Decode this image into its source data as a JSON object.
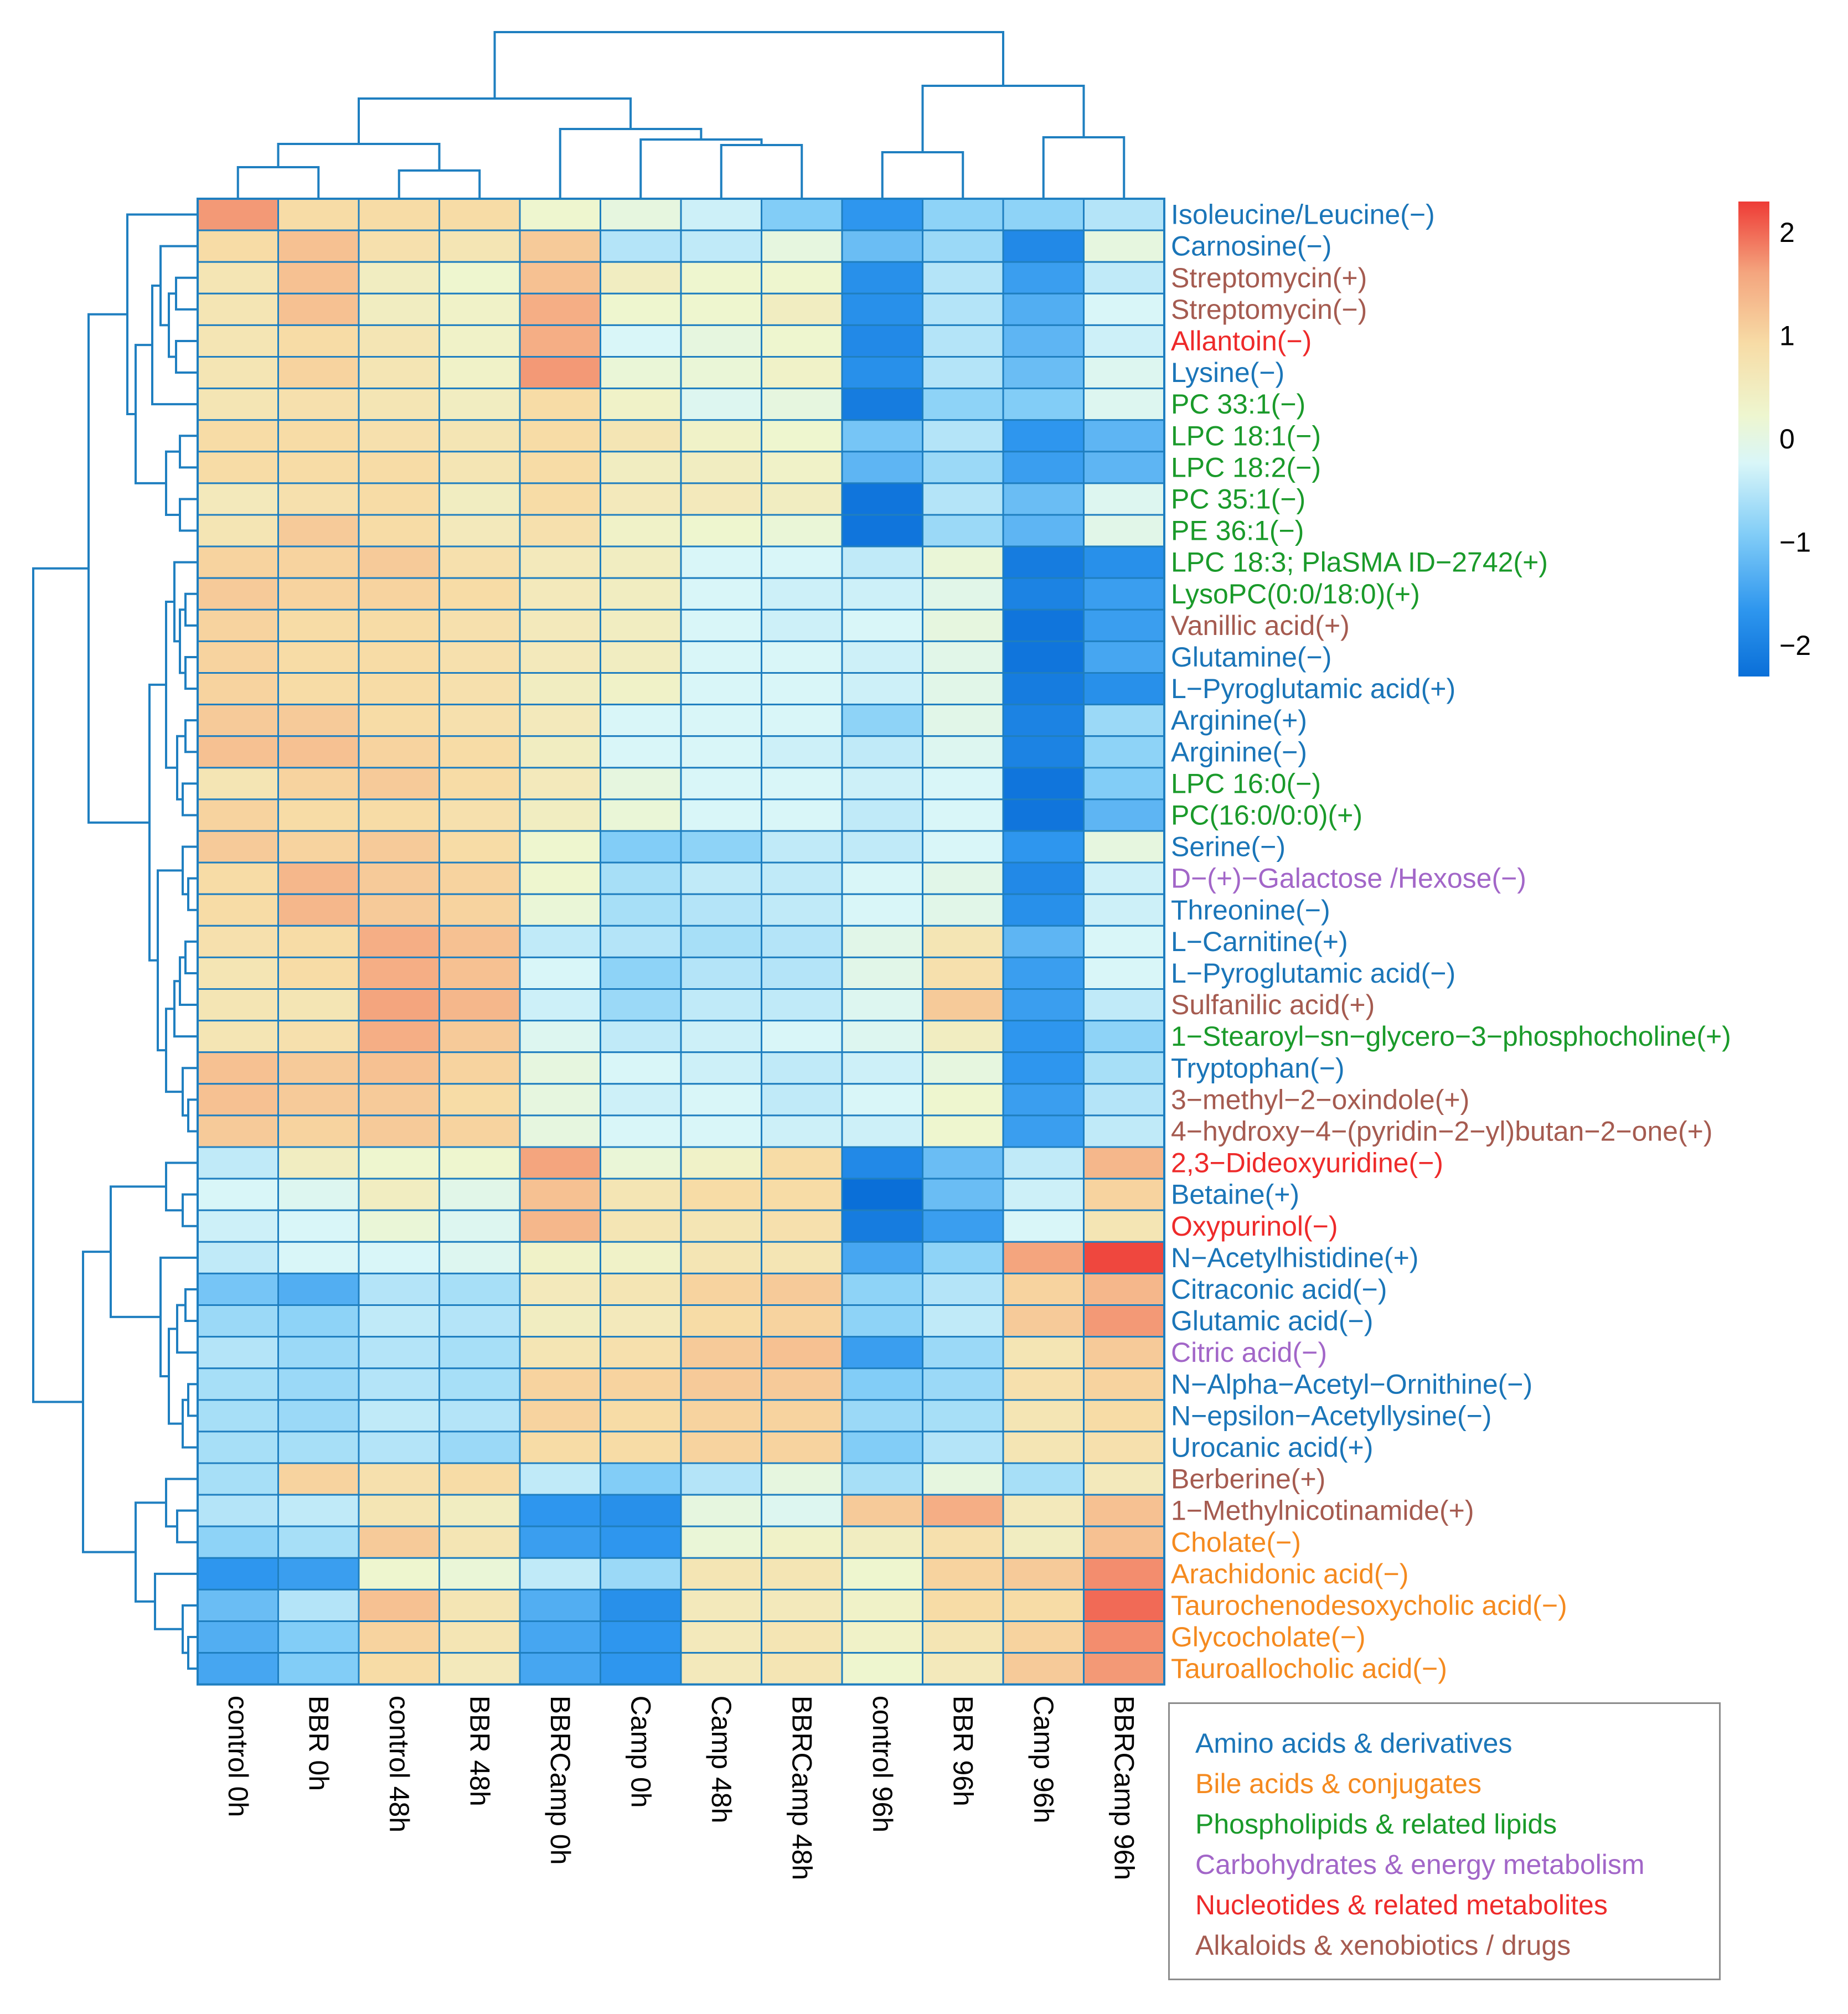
{
  "colors": {
    "dendrogram": "#1f7fc0",
    "cell_border": "#1f7fc0",
    "scale": [
      "#0a6fd8",
      "#2e96ee",
      "#82cdf7",
      "#d9f6f8",
      "#eef6cf",
      "#f7dca6",
      "#f4a57e",
      "#ee3b36"
    ],
    "categories": {
      "amino": "#1a75b8",
      "bile": "#f58a1f",
      "phospho": "#1a9a2a",
      "carb": "#a266c8",
      "nucleo": "#ee2a2a",
      "alkaloid": "#a55b50"
    }
  },
  "legend": [
    {
      "key": "amino",
      "label": "Amino acids & derivatives"
    },
    {
      "key": "bile",
      "label": "Bile acids & conjugates"
    },
    {
      "key": "phospho",
      "label": "Phospholipids & related lipids"
    },
    {
      "key": "carb",
      "label": "Carbohydrates & energy metabolism"
    },
    {
      "key": "nucleo",
      "label": "Nucleotides & related metabolites"
    },
    {
      "key": "alkaloid",
      "label": "Alkaloids & xenobiotics / drugs"
    }
  ],
  "chart_data": {
    "type": "heatmap",
    "title": "",
    "xlabel": "",
    "ylabel": "",
    "color_scale": {
      "min": -2.3,
      "max": 2.3,
      "ticks": [
        2,
        1,
        0,
        -1,
        -2
      ],
      "tick_labels": [
        "2",
        "1",
        "0",
        "−1",
        "−2"
      ]
    },
    "columns": [
      "control 0h",
      "BBR 0h",
      "control 48h",
      "BBR 48h",
      "BBRCamp 0h",
      "Camp 0h",
      "Camp 48h",
      "BBRCamp 48h",
      "control 96h",
      "BBR 96h",
      "Camp 96h",
      "BBRCamp 96h"
    ],
    "rows": [
      {
        "label": "Isoleucine/Leucine(−)",
        "category": "amino",
        "values": [
          1.5,
          0.8,
          0.8,
          0.8,
          0.2,
          0.0,
          -0.4,
          -1.0,
          -1.7,
          -0.9,
          -0.9,
          -0.6
        ]
      },
      {
        "label": "Carnosine(−)",
        "category": "amino",
        "values": [
          0.8,
          1.1,
          0.7,
          0.6,
          1.0,
          -0.6,
          -0.5,
          0.0,
          -1.2,
          -0.8,
          -1.9,
          0.0
        ]
      },
      {
        "label": "Streptomycin(+)",
        "category": "alkaloid",
        "values": [
          0.6,
          1.1,
          0.4,
          0.2,
          1.1,
          0.4,
          0.2,
          0.2,
          -1.8,
          -0.6,
          -1.6,
          -0.5
        ]
      },
      {
        "label": "Streptomycin(−)",
        "category": "alkaloid",
        "values": [
          0.6,
          1.1,
          0.4,
          0.3,
          1.3,
          0.2,
          0.2,
          0.4,
          -1.8,
          -0.6,
          -1.4,
          -0.3
        ]
      },
      {
        "label": "Allantoin(−)",
        "category": "nucleo",
        "values": [
          0.6,
          0.8,
          0.6,
          0.3,
          1.3,
          -0.3,
          0.0,
          0.2,
          -1.9,
          -0.6,
          -1.3,
          -0.4
        ]
      },
      {
        "label": "Lysine(−)",
        "category": "amino",
        "values": [
          0.6,
          0.9,
          0.6,
          0.3,
          1.5,
          0.1,
          0.1,
          0.3,
          -1.8,
          -0.6,
          -1.2,
          -0.2
        ]
      },
      {
        "label": "PC 33:1(−)",
        "category": "phospho",
        "values": [
          0.6,
          0.7,
          0.6,
          0.4,
          0.8,
          0.3,
          -0.2,
          0.0,
          -2.1,
          -0.9,
          -1.0,
          -0.2
        ]
      },
      {
        "label": "LPC 18:1(−)",
        "category": "phospho",
        "values": [
          0.8,
          0.8,
          0.7,
          0.6,
          0.8,
          0.6,
          0.3,
          0.2,
          -1.1,
          -0.6,
          -1.7,
          -1.3
        ]
      },
      {
        "label": "LPC 18:2(−)",
        "category": "phospho",
        "values": [
          0.8,
          0.8,
          0.8,
          0.6,
          0.8,
          0.4,
          0.4,
          0.3,
          -1.3,
          -0.8,
          -1.6,
          -1.3
        ]
      },
      {
        "label": "PC 35:1(−)",
        "category": "phospho",
        "values": [
          0.5,
          0.7,
          0.8,
          0.4,
          0.8,
          0.5,
          0.5,
          0.4,
          -2.2,
          -0.6,
          -1.2,
          -0.2
        ]
      },
      {
        "label": "PE 36:1(−)",
        "category": "phospho",
        "values": [
          0.6,
          1.0,
          0.8,
          0.5,
          0.7,
          0.3,
          0.2,
          0.1,
          -2.2,
          -0.8,
          -1.3,
          -0.1
        ]
      },
      {
        "label": "LPC 18:3; PlaSMA ID−2742(+)",
        "category": "phospho",
        "values": [
          0.9,
          0.9,
          1.0,
          0.7,
          0.5,
          0.4,
          -0.3,
          -0.3,
          -0.5,
          0.1,
          -2.1,
          -1.8
        ]
      },
      {
        "label": "LysoPC(0:0/18:0)(+)",
        "category": "phospho",
        "values": [
          1.0,
          0.9,
          0.9,
          0.8,
          0.5,
          0.4,
          -0.3,
          -0.4,
          -0.4,
          -0.1,
          -2.0,
          -1.6
        ]
      },
      {
        "label": "Vanillic acid(+)",
        "category": "alkaloid",
        "values": [
          0.9,
          0.8,
          0.8,
          0.7,
          0.5,
          0.4,
          -0.3,
          -0.4,
          -0.3,
          0.0,
          -2.2,
          -1.6
        ]
      },
      {
        "label": "Glutamine(−)",
        "category": "amino",
        "values": [
          0.9,
          0.8,
          0.8,
          0.7,
          0.5,
          0.4,
          -0.3,
          -0.3,
          -0.4,
          -0.1,
          -2.2,
          -1.5
        ]
      },
      {
        "label": "L−Pyroglutamic acid(+)",
        "category": "amino",
        "values": [
          0.9,
          0.8,
          0.8,
          0.7,
          0.4,
          0.3,
          -0.3,
          -0.3,
          -0.4,
          -0.1,
          -2.1,
          -1.8
        ]
      },
      {
        "label": "Arginine(+)",
        "category": "amino",
        "values": [
          1.0,
          1.0,
          0.8,
          0.7,
          0.5,
          -0.3,
          -0.3,
          -0.3,
          -0.9,
          -0.1,
          -2.0,
          -0.8
        ]
      },
      {
        "label": "Arginine(−)",
        "category": "amino",
        "values": [
          1.1,
          1.1,
          0.9,
          0.8,
          0.4,
          -0.3,
          -0.3,
          -0.4,
          -0.5,
          -0.2,
          -2.0,
          -0.9
        ]
      },
      {
        "label": "LPC 16:0(−)",
        "category": "phospho",
        "values": [
          0.6,
          0.9,
          1.0,
          0.8,
          0.5,
          0.0,
          -0.3,
          -0.3,
          -0.4,
          -0.3,
          -2.2,
          -1.0
        ]
      },
      {
        "label": "PC(16:0/0:0)(+)",
        "category": "phospho",
        "values": [
          0.9,
          0.8,
          0.8,
          0.7,
          0.4,
          0.1,
          -0.3,
          -0.3,
          -0.5,
          -0.3,
          -2.2,
          -1.3
        ]
      },
      {
        "label": "Serine(−)",
        "category": "amino",
        "values": [
          1.0,
          0.9,
          1.0,
          0.8,
          0.2,
          -1.0,
          -0.9,
          -0.5,
          -0.5,
          -0.3,
          -1.7,
          0.0
        ]
      },
      {
        "label": "D−(+)−Galactose /Hexose(−)",
        "category": "carb",
        "values": [
          0.8,
          1.2,
          1.0,
          0.9,
          0.2,
          -0.7,
          -0.5,
          -0.5,
          -0.3,
          -0.1,
          -1.9,
          -0.4
        ]
      },
      {
        "label": "Threonine(−)",
        "category": "amino",
        "values": [
          0.8,
          1.2,
          1.0,
          0.9,
          0.1,
          -0.7,
          -0.6,
          -0.5,
          -0.3,
          -0.1,
          -1.8,
          -0.4
        ]
      },
      {
        "label": "L−Carnitine(+)",
        "category": "amino",
        "values": [
          0.7,
          0.8,
          1.3,
          1.1,
          -0.5,
          -0.6,
          -0.7,
          -0.6,
          -0.1,
          0.6,
          -1.3,
          -0.3
        ]
      },
      {
        "label": "L−Pyroglutamic acid(−)",
        "category": "amino",
        "values": [
          0.6,
          0.8,
          1.3,
          1.1,
          -0.3,
          -0.9,
          -0.6,
          -0.6,
          -0.1,
          0.7,
          -1.6,
          -0.3
        ]
      },
      {
        "label": "Sulfanilic acid(+)",
        "category": "alkaloid",
        "values": [
          0.6,
          0.6,
          1.4,
          1.2,
          -0.4,
          -0.8,
          -0.5,
          -0.5,
          -0.2,
          1.0,
          -1.6,
          -0.5
        ]
      },
      {
        "label": "1−Stearoyl−sn−glycero−3−phosphocholine(+)",
        "category": "phospho",
        "values": [
          0.6,
          0.7,
          1.3,
          1.0,
          -0.2,
          -0.5,
          -0.4,
          -0.3,
          -0.2,
          0.4,
          -1.7,
          -0.9
        ]
      },
      {
        "label": "Tryptophan(−)",
        "category": "amino",
        "values": [
          1.1,
          1.0,
          1.1,
          0.9,
          0.0,
          -0.3,
          -0.4,
          -0.5,
          -0.4,
          0.0,
          -1.7,
          -0.7
        ]
      },
      {
        "label": "3−methyl−2−oxindole(+)",
        "category": "alkaloid",
        "values": [
          1.1,
          1.0,
          1.0,
          0.8,
          0.0,
          -0.4,
          -0.3,
          -0.5,
          -0.3,
          0.2,
          -1.6,
          -0.6
        ]
      },
      {
        "label": "4−hydroxy−4−(pyridin−2−yl)butan−2−one(+)",
        "category": "alkaloid",
        "values": [
          1.0,
          0.9,
          1.0,
          0.9,
          0.0,
          -0.3,
          -0.3,
          -0.4,
          -0.4,
          0.2,
          -1.6,
          -0.5
        ]
      },
      {
        "label": "2,3−Dideoxyuridine(−)",
        "category": "nucleo",
        "values": [
          -0.5,
          0.4,
          0.2,
          0.2,
          1.4,
          0.1,
          0.3,
          0.8,
          -1.9,
          -1.2,
          -0.5,
          1.2
        ]
      },
      {
        "label": "Betaine(+)",
        "category": "amino",
        "values": [
          -0.3,
          -0.2,
          0.4,
          -0.1,
          1.1,
          0.6,
          0.8,
          0.8,
          -2.3,
          -1.2,
          -0.4,
          0.9
        ]
      },
      {
        "label": "Oxypurinol(−)",
        "category": "nucleo",
        "values": [
          -0.4,
          -0.3,
          0.1,
          -0.2,
          1.2,
          0.6,
          0.6,
          0.7,
          -2.1,
          -1.6,
          -0.3,
          0.6
        ]
      },
      {
        "label": "N−Acetylhistidine(+)",
        "category": "amino",
        "values": [
          -0.5,
          -0.3,
          -0.3,
          -0.2,
          0.3,
          0.3,
          0.6,
          0.6,
          -1.5,
          -0.9,
          1.4,
          2.2
        ]
      },
      {
        "label": "Citraconic acid(−)",
        "category": "amino",
        "values": [
          -1.1,
          -1.4,
          -0.6,
          -0.7,
          0.5,
          0.6,
          0.9,
          1.0,
          -0.9,
          -0.6,
          0.9,
          1.2
        ]
      },
      {
        "label": "Glutamic acid(−)",
        "category": "amino",
        "values": [
          -0.8,
          -0.9,
          -0.5,
          -0.6,
          0.4,
          0.5,
          0.8,
          0.9,
          -0.9,
          -0.5,
          1.0,
          1.5
        ]
      },
      {
        "label": "Citric acid(−)",
        "category": "carb",
        "values": [
          -0.6,
          -0.8,
          -0.6,
          -0.7,
          0.6,
          0.7,
          1.0,
          1.1,
          -1.6,
          -0.8,
          0.6,
          1.0
        ]
      },
      {
        "label": "N−Alpha−Acetyl−Ornithine(−)",
        "category": "amino",
        "values": [
          -0.7,
          -0.8,
          -0.6,
          -0.7,
          0.9,
          0.9,
          1.0,
          1.0,
          -1.0,
          -0.8,
          0.7,
          0.9
        ]
      },
      {
        "label": "N−epsilon−Acetyllysine(−)",
        "category": "amino",
        "values": [
          -0.7,
          -0.8,
          -0.5,
          -0.6,
          0.9,
          0.8,
          0.9,
          0.9,
          -0.8,
          -0.7,
          0.6,
          0.8
        ]
      },
      {
        "label": "Urocanic acid(+)",
        "category": "amino",
        "values": [
          -0.7,
          -0.7,
          -0.6,
          -0.8,
          0.8,
          0.8,
          0.9,
          0.9,
          -1.0,
          -0.6,
          0.6,
          0.7
        ]
      },
      {
        "label": "Berberine(+)",
        "category": "alkaloid",
        "values": [
          -0.7,
          0.9,
          0.7,
          0.8,
          -0.5,
          -1.0,
          -0.6,
          0.0,
          -0.7,
          0.0,
          -0.7,
          0.5
        ]
      },
      {
        "label": "1−Methylnicotinamide(+)",
        "category": "alkaloid",
        "values": [
          -0.6,
          -0.5,
          0.6,
          0.4,
          -1.7,
          -1.8,
          0.0,
          -0.2,
          1.0,
          1.3,
          0.5,
          1.1
        ]
      },
      {
        "label": "Cholate(−)",
        "category": "bile",
        "values": [
          -0.9,
          -0.7,
          1.0,
          0.6,
          -1.6,
          -1.7,
          0.1,
          0.3,
          0.4,
          0.7,
          0.4,
          1.1
        ]
      },
      {
        "label": "Arachidonic acid(−)",
        "category": "bile",
        "values": [
          -1.7,
          -1.6,
          0.2,
          0.1,
          -0.5,
          -0.8,
          0.6,
          0.6,
          0.2,
          0.9,
          1.0,
          1.6
        ]
      },
      {
        "label": "Taurochenodesoxycholic acid(−)",
        "category": "bile",
        "values": [
          -1.2,
          -0.6,
          1.1,
          0.6,
          -1.4,
          -1.8,
          0.5,
          0.5,
          0.3,
          0.8,
          0.8,
          1.9
        ]
      },
      {
        "label": "Glycocholate(−)",
        "category": "bile",
        "values": [
          -1.4,
          -1.0,
          0.9,
          0.6,
          -1.5,
          -1.7,
          0.5,
          0.6,
          0.3,
          0.6,
          0.9,
          1.6
        ]
      },
      {
        "label": "Tauroallocholic acid(−)",
        "category": "bile",
        "values": [
          -1.5,
          -1.0,
          0.8,
          0.5,
          -1.5,
          -1.7,
          0.5,
          0.6,
          0.2,
          0.5,
          1.0,
          1.5
        ]
      }
    ]
  }
}
